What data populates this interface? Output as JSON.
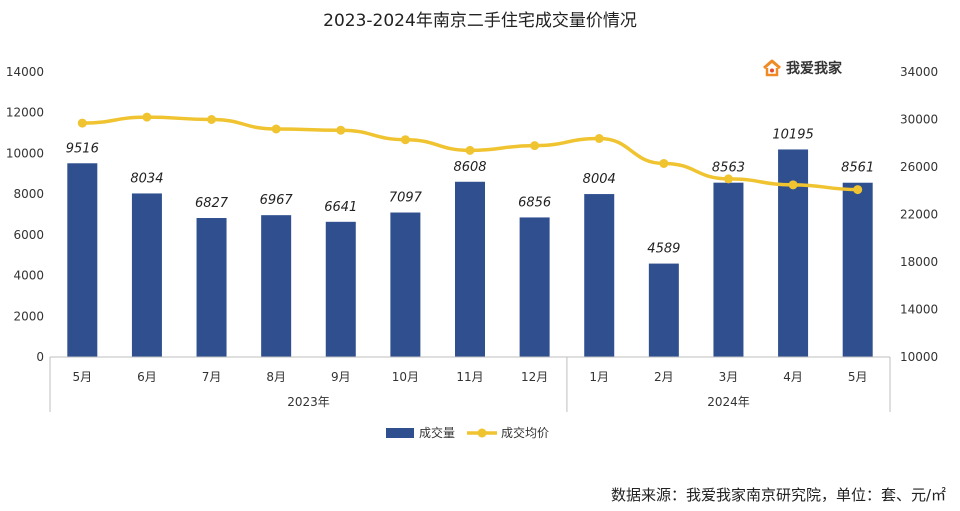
{
  "chart_data": {
    "type": "bar",
    "title": "2023-2024年南京二手住宅成交量价情况",
    "categories": [
      "5月",
      "6月",
      "7月",
      "8月",
      "9月",
      "10月",
      "11月",
      "12月",
      "1月",
      "2月",
      "3月",
      "4月",
      "5月"
    ],
    "groups": [
      {
        "label": "2023年",
        "count": 8
      },
      {
        "label": "2024年",
        "count": 5
      }
    ],
    "series": [
      {
        "name": "成交量",
        "kind": "bar",
        "axis": "left",
        "color": "#2f4f8f",
        "values": [
          9516,
          8034,
          6827,
          6967,
          6641,
          7097,
          8608,
          6856,
          8004,
          4589,
          8563,
          10195,
          8561
        ]
      },
      {
        "name": "成交均价",
        "kind": "line",
        "axis": "right",
        "color": "#f0c330",
        "values": [
          29700,
          30200,
          30000,
          29200,
          29100,
          28300,
          27400,
          27800,
          28400,
          26300,
          25000,
          24500,
          24100
        ]
      }
    ],
    "y_left": {
      "min": 0,
      "max": 14000,
      "ticks": [
        0,
        2000,
        4000,
        6000,
        8000,
        10000,
        12000,
        14000
      ]
    },
    "y_right": {
      "min": 10000,
      "max": 34000,
      "ticks": [
        10000,
        14000,
        18000,
        22000,
        26000,
        30000,
        34000
      ]
    },
    "legend_position": "bottom",
    "grid": false
  },
  "watermark": {
    "text": "我爱我家",
    "icon": "house-logo-icon"
  },
  "source_note": "数据来源：我爱我家南京研究院，单位：套、元/㎡"
}
